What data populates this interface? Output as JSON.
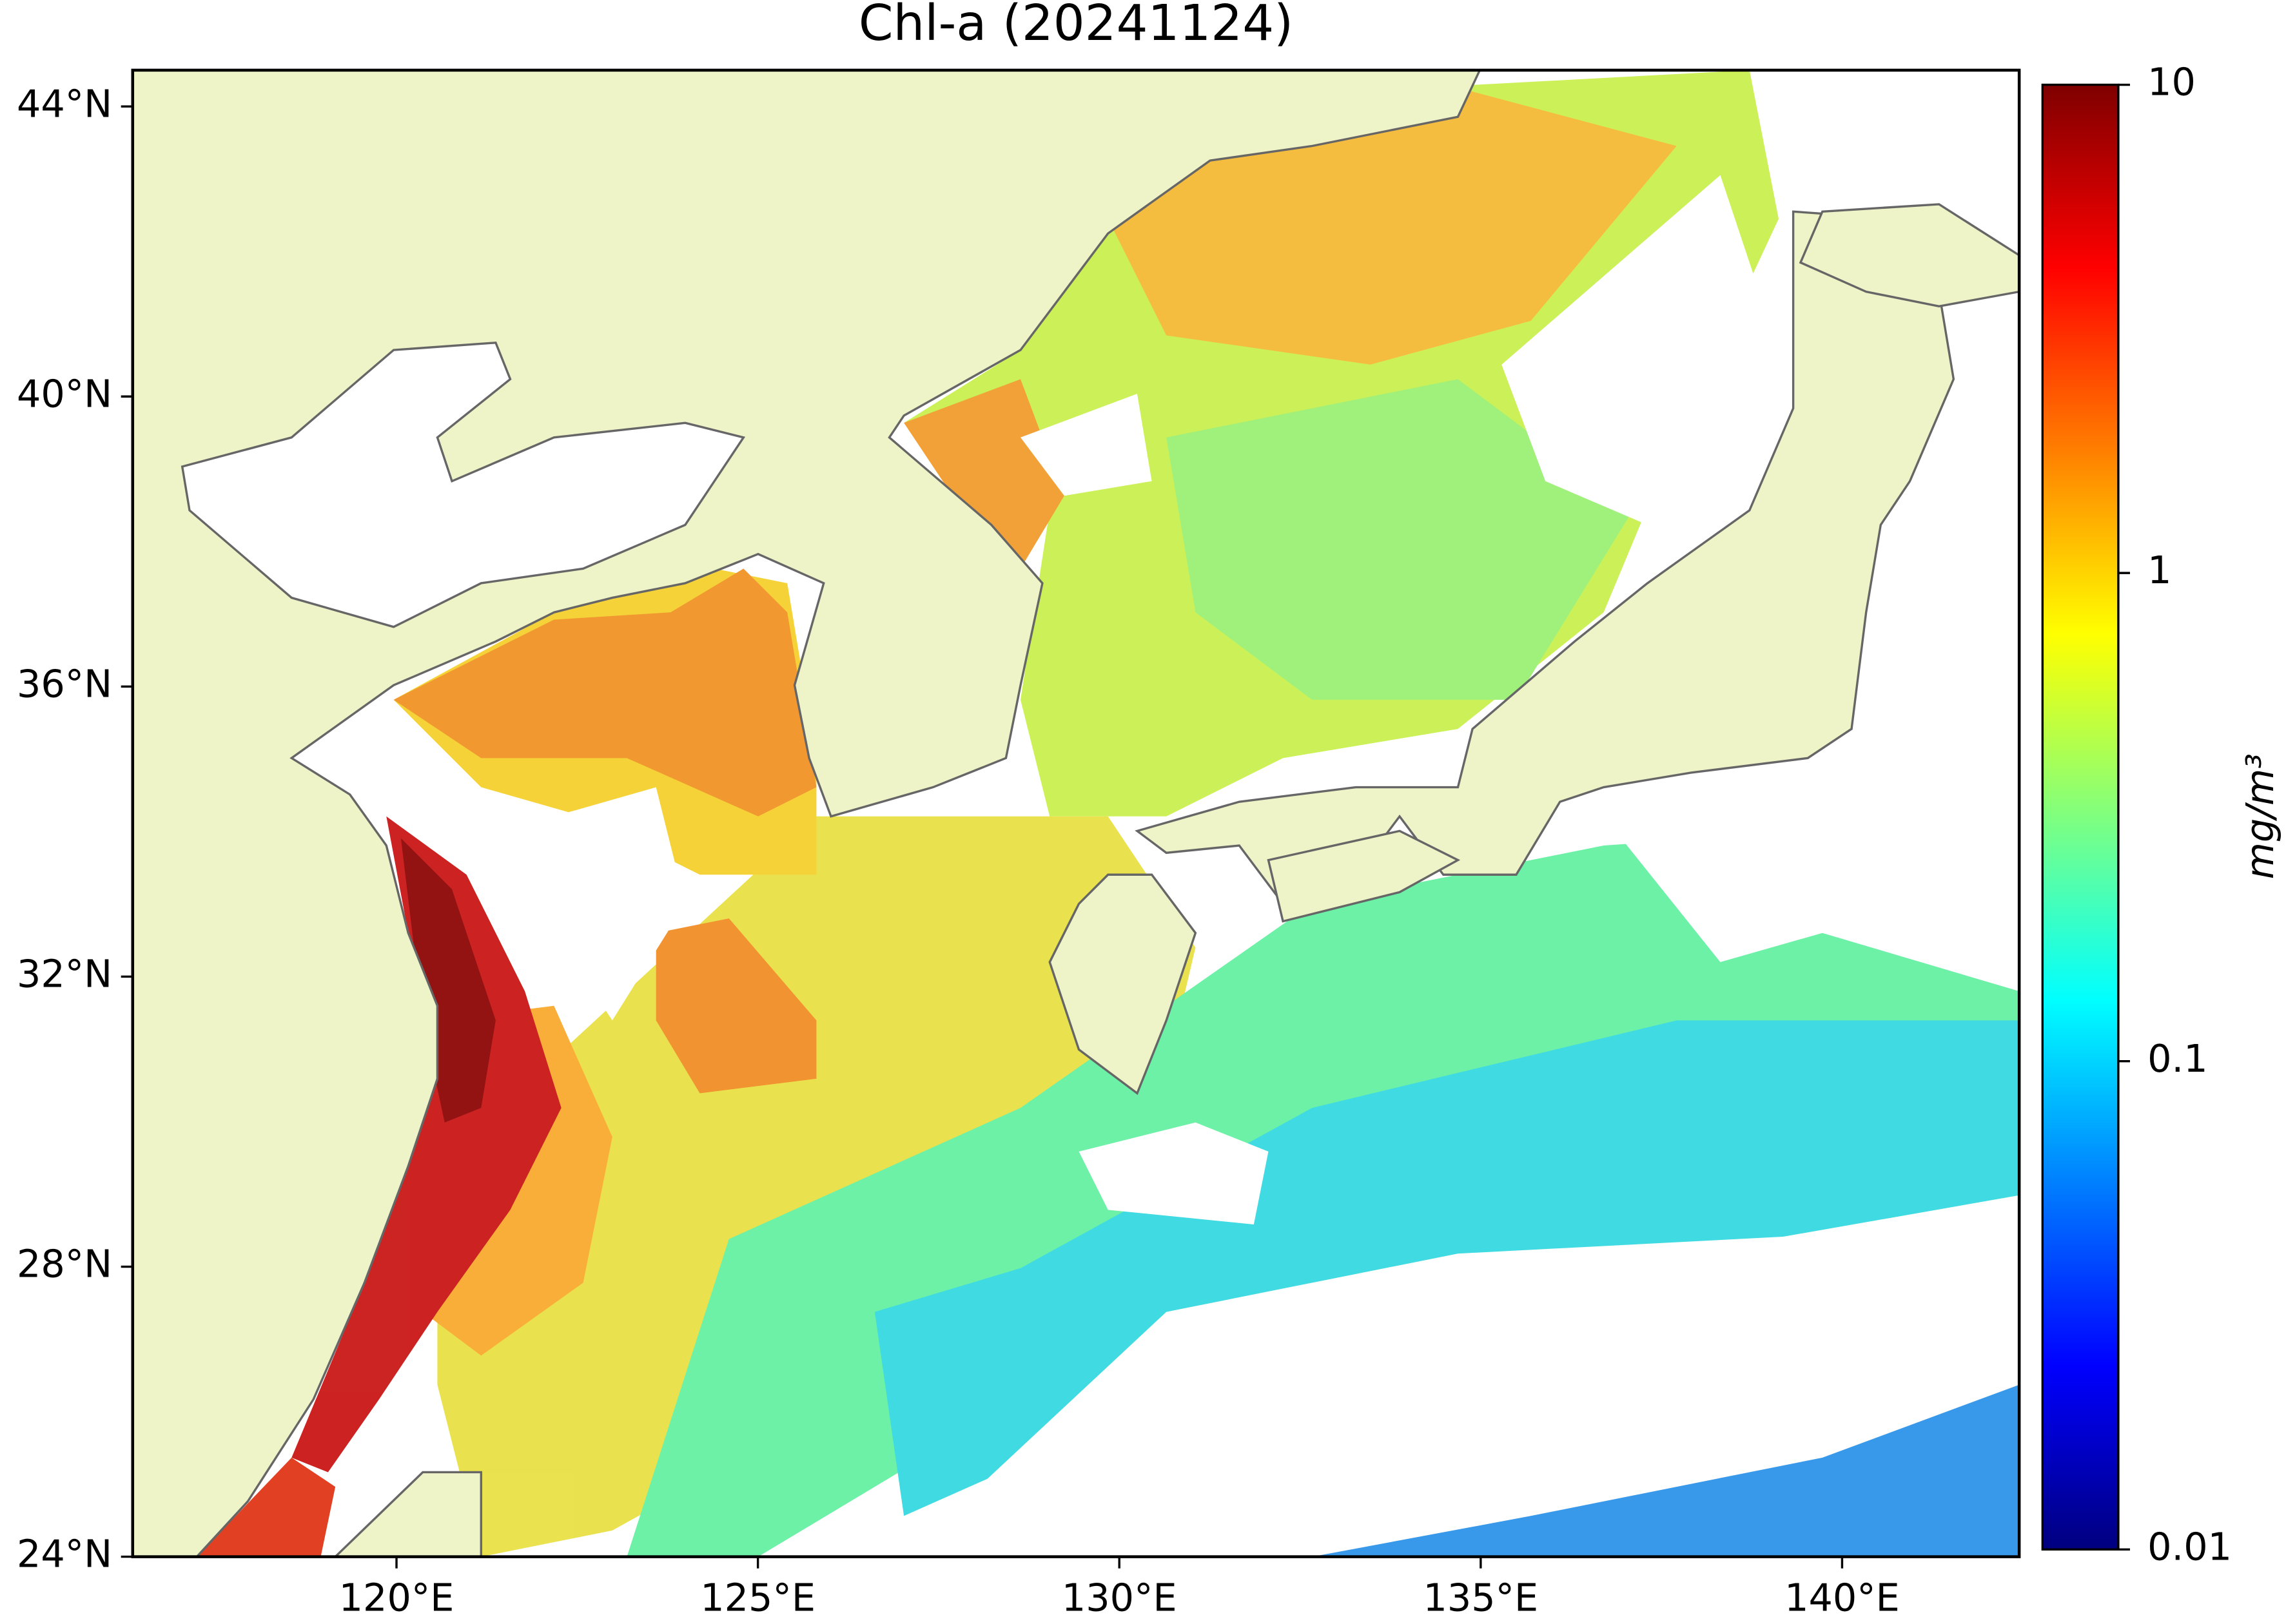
{
  "chart_data": {
    "type": "map",
    "title": "Chl-a (20241124)",
    "xlim": [
      116.35,
      142.45
    ],
    "ylim": [
      24,
      44.5
    ],
    "xticks": [
      {
        "value": 120,
        "label": "120°E"
      },
      {
        "value": 125,
        "label": "125°E"
      },
      {
        "value": 130,
        "label": "130°E"
      },
      {
        "value": 135,
        "label": "135°E"
      },
      {
        "value": 140,
        "label": "140°E"
      }
    ],
    "yticks": [
      {
        "value": 24,
        "label": "24°N"
      },
      {
        "value": 28,
        "label": "28°N"
      },
      {
        "value": 32,
        "label": "32°N"
      },
      {
        "value": 36,
        "label": "36°N"
      },
      {
        "value": 40,
        "label": "40°N"
      },
      {
        "value": 44,
        "label": "44°N"
      }
    ],
    "colorbar": {
      "label": "mg/m³",
      "colormap": "jet",
      "log": true,
      "lim": [
        0.01,
        10
      ],
      "ticks": [
        0.01,
        0.1,
        1,
        10
      ]
    }
  }
}
